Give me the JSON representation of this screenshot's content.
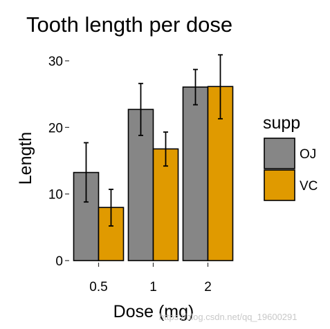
{
  "chart_data": {
    "type": "bar",
    "title": "Tooth length per dose",
    "xlabel": "Dose (mg)",
    "ylabel": "Length",
    "categories": [
      "0.5",
      "1",
      "2"
    ],
    "ylim": [
      0,
      31
    ],
    "yticks": [
      0,
      10,
      20,
      30
    ],
    "grid": false,
    "legend_title": "supp",
    "legend_position": "right",
    "series": [
      {
        "name": "OJ",
        "color": "#868686",
        "values": [
          13.23,
          22.7,
          26.06
        ],
        "err_low": [
          8.8,
          18.8,
          23.4
        ],
        "err_high": [
          17.7,
          26.6,
          28.7
        ]
      },
      {
        "name": "VC",
        "color": "#E09A00",
        "values": [
          7.98,
          16.77,
          26.14
        ],
        "err_low": [
          5.2,
          14.2,
          21.3
        ],
        "err_high": [
          10.7,
          19.3,
          30.9
        ]
      }
    ]
  },
  "watermark": "https://blog.csdn.net/qq_19600291"
}
